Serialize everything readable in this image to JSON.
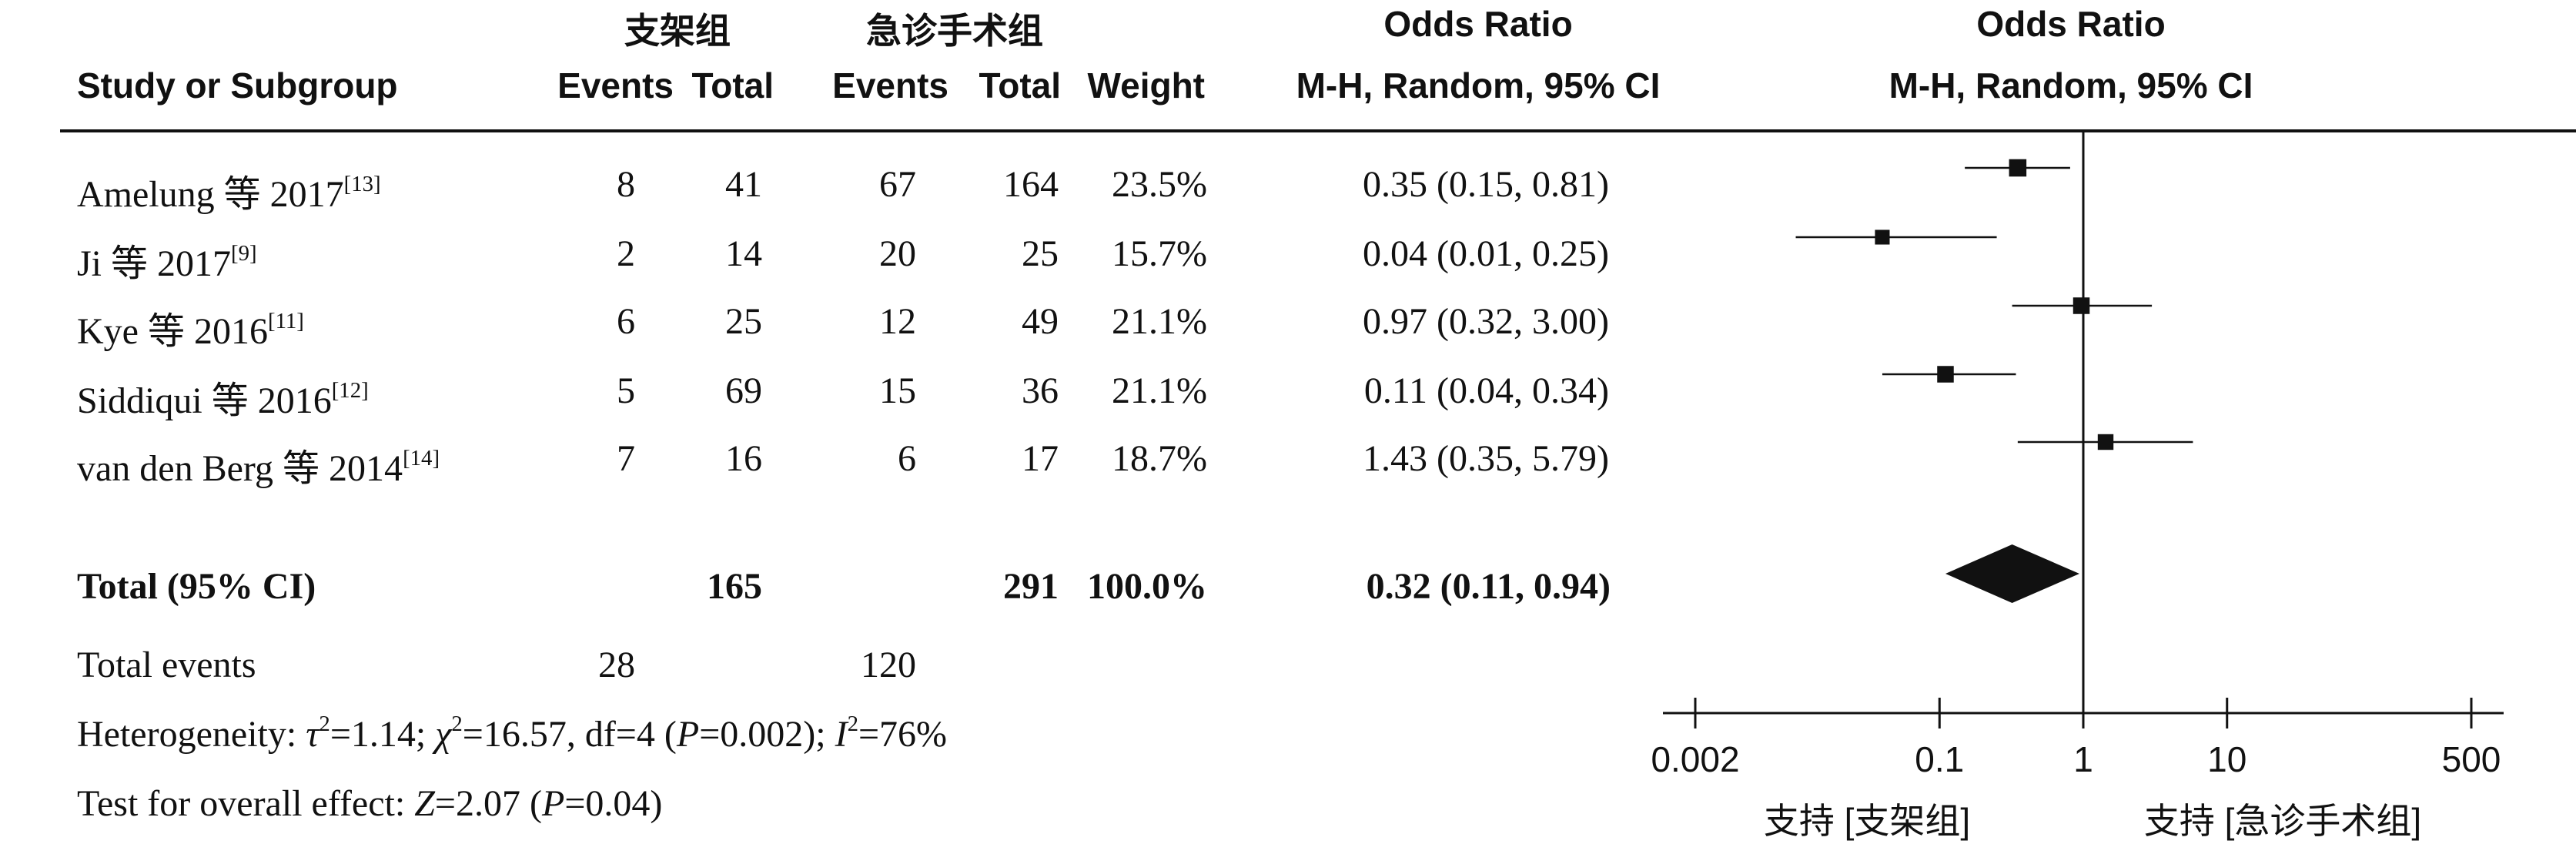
{
  "headers": {
    "group1": "支架组",
    "group2": "急诊手术组",
    "study": "Study or Subgroup",
    "events1": "Events",
    "total1": "Total",
    "events2": "Events",
    "total2": "Total",
    "weight": "Weight",
    "or_title_table": "Odds Ratio",
    "or_method_table": "M-H, Random, 95% CI",
    "or_title_plot": "Odds Ratio",
    "or_method_plot": "M-H, Random, 95% CI"
  },
  "studies": [
    {
      "name": "Amelung 等 2017",
      "ref": "[13]",
      "events1": "8",
      "total1": "41",
      "events2": "67",
      "total2": "164",
      "weight": "23.5%",
      "ci": "0.35 (0.15, 0.81)"
    },
    {
      "name": "Ji 等 2017",
      "ref": "[9]",
      "events1": "2",
      "total1": "14",
      "events2": "20",
      "total2": "25",
      "weight": "15.7%",
      "ci": "0.04 (0.01, 0.25)"
    },
    {
      "name": "Kye 等 2016",
      "ref": "[11]",
      "events1": "6",
      "total1": "25",
      "events2": "12",
      "total2": "49",
      "weight": "21.1%",
      "ci": "0.97 (0.32, 3.00)"
    },
    {
      "name": "Siddiqui 等 2016",
      "ref": "[12]",
      "events1": "5",
      "total1": "69",
      "events2": "15",
      "total2": "36",
      "weight": "21.1%",
      "ci": "0.11 (0.04, 0.34)"
    },
    {
      "name": "van den Berg 等 2014",
      "ref": "[14]",
      "events1": "7",
      "total1": "16",
      "events2": "6",
      "total2": "17",
      "weight": "18.7%",
      "ci": "1.43 (0.35, 5.79)"
    }
  ],
  "total": {
    "label": "Total (95% CI)",
    "total1": "165",
    "total2": "291",
    "weight": "100.0%",
    "ci": "0.32 (0.11, 0.94)"
  },
  "total_events": {
    "label": "Total events",
    "events1": "28",
    "events2": "120"
  },
  "heterogeneity": {
    "prefix": "Heterogeneity: ",
    "tau_sym": "τ",
    "tau_val": "=1.14; ",
    "chi_sym": "χ",
    "chi_val": "=16.57, df=4 (",
    "p_sym": "P",
    "p_val": "=0.002); ",
    "i_sym": "I",
    "i_val": "=76%"
  },
  "overall": {
    "prefix": "Test for overall effect: ",
    "z_sym": "Z",
    "z_val": "=2.07 (",
    "p_sym": "P",
    "p_val": "=0.04)"
  },
  "chart_data": {
    "type": "scatter",
    "scale": "log",
    "xlim": [
      0.002,
      500
    ],
    "null_line": 1,
    "ticks": [
      0.002,
      0.1,
      1,
      10,
      500
    ],
    "tick_labels": [
      "0.002",
      "0.1",
      "1",
      "10",
      "500"
    ],
    "favours_left": "支持 [支架组]",
    "favours_right": "支持 [急诊手术组]",
    "points": [
      {
        "study": "Amelung 等 2017",
        "or": 0.35,
        "lo": 0.15,
        "hi": 0.81,
        "weight": 23.5
      },
      {
        "study": "Ji 等 2017",
        "or": 0.04,
        "lo": 0.01,
        "hi": 0.25,
        "weight": 15.7
      },
      {
        "study": "Kye 等 2016",
        "or": 0.97,
        "lo": 0.32,
        "hi": 3.0,
        "weight": 21.1
      },
      {
        "study": "Siddiqui 等 2016",
        "or": 0.11,
        "lo": 0.04,
        "hi": 0.34,
        "weight": 21.1
      },
      {
        "study": "van den Berg 等 2014",
        "or": 1.43,
        "lo": 0.35,
        "hi": 5.79,
        "weight": 18.7
      }
    ],
    "pooled": {
      "or": 0.32,
      "lo": 0.11,
      "hi": 0.94
    }
  }
}
